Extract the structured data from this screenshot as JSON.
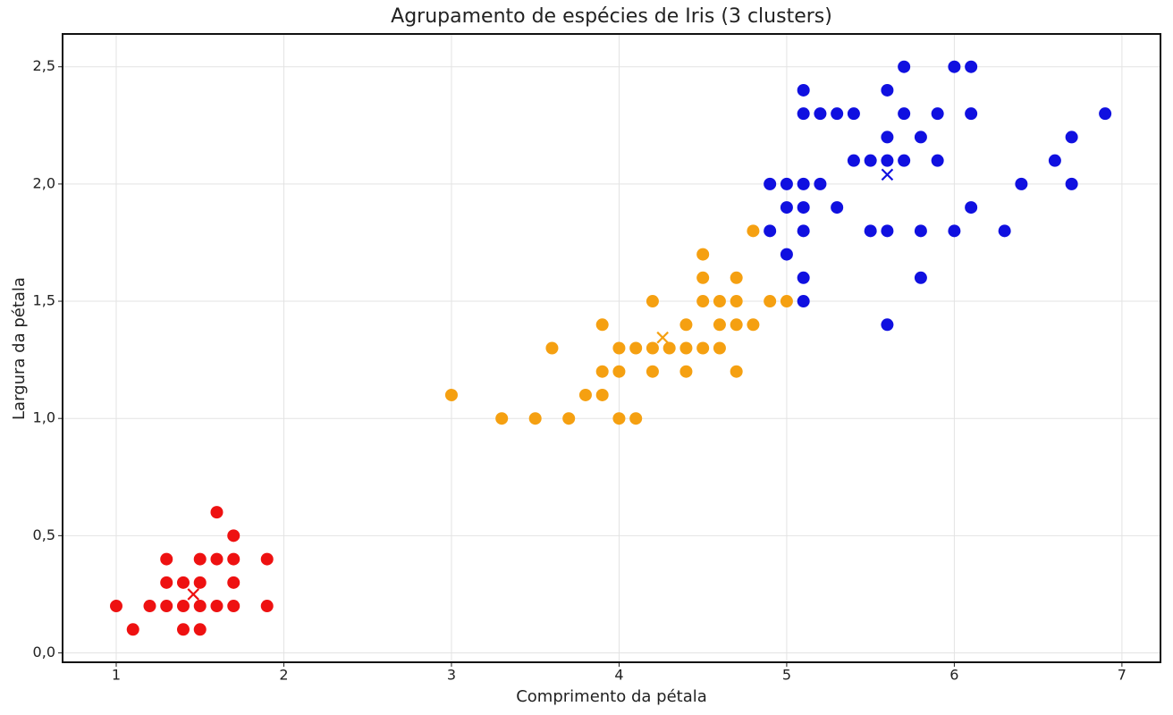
{
  "chart_data": {
    "type": "scatter",
    "title": "Agrupamento de espécies de Iris (3 clusters)",
    "x_label": "Comprimento da pétala",
    "y_label": "Largura da pétala",
    "xlim": [
      0.68,
      7.23
    ],
    "ylim": [
      -0.04,
      2.64
    ],
    "xticks": [
      1,
      2,
      3,
      4,
      5,
      6,
      7
    ],
    "yticks": [
      {
        "value": 0,
        "label": "0,0"
      },
      {
        "value": 0.5,
        "label": "0,5"
      },
      {
        "value": 1,
        "label": "1,0"
      },
      {
        "value": 1.5,
        "label": "1,5"
      },
      {
        "value": 2,
        "label": "2,0"
      },
      {
        "value": 2.5,
        "label": "2,5"
      }
    ],
    "grid": true,
    "series": [
      {
        "color": "#ee1111",
        "x": [
          1.0,
          1.1,
          1.2,
          1.3,
          1.3,
          1.3,
          1.4,
          1.4,
          1.4,
          1.5,
          1.5,
          1.5,
          1.5,
          1.6,
          1.6,
          1.6,
          1.7,
          1.7,
          1.7,
          1.7,
          1.9,
          1.9
        ],
        "y": [
          0.2,
          0.1,
          0.2,
          0.2,
          0.3,
          0.4,
          0.1,
          0.2,
          0.3,
          0.1,
          0.2,
          0.3,
          0.4,
          0.2,
          0.4,
          0.6,
          0.2,
          0.3,
          0.4,
          0.5,
          0.2,
          0.4
        ],
        "centroid": [
          1.46,
          0.25
        ]
      },
      {
        "color": "#f5a011",
        "x": [
          3.0,
          3.3,
          3.5,
          3.6,
          3.7,
          3.8,
          3.9,
          3.9,
          3.9,
          4.0,
          4.0,
          4.0,
          4.1,
          4.1,
          4.2,
          4.2,
          4.2,
          4.3,
          4.4,
          4.4,
          4.4,
          4.5,
          4.5,
          4.5,
          4.5,
          4.6,
          4.6,
          4.6,
          4.7,
          4.7,
          4.7,
          4.7,
          4.8,
          4.8,
          4.9,
          5.0
        ],
        "y": [
          1.1,
          1.0,
          1.0,
          1.3,
          1.0,
          1.1,
          1.1,
          1.2,
          1.4,
          1.0,
          1.2,
          1.3,
          1.0,
          1.3,
          1.2,
          1.3,
          1.5,
          1.3,
          1.2,
          1.3,
          1.4,
          1.3,
          1.5,
          1.6,
          1.7,
          1.3,
          1.4,
          1.5,
          1.2,
          1.4,
          1.5,
          1.6,
          1.4,
          1.8,
          1.5,
          1.5
        ],
        "centroid": [
          4.26,
          1.345
        ]
      },
      {
        "color": "#1010e0",
        "x": [
          4.9,
          4.9,
          5.0,
          5.0,
          5.0,
          5.1,
          5.1,
          5.1,
          5.1,
          5.1,
          5.1,
          5.1,
          5.2,
          5.2,
          5.3,
          5.3,
          5.4,
          5.4,
          5.5,
          5.5,
          5.6,
          5.6,
          5.6,
          5.6,
          5.6,
          5.7,
          5.7,
          5.7,
          5.8,
          5.8,
          5.8,
          5.9,
          5.9,
          6.0,
          6.0,
          6.1,
          6.1,
          6.1,
          6.3,
          6.4,
          6.6,
          6.7,
          6.7,
          6.9
        ],
        "y": [
          1.8,
          2.0,
          1.7,
          1.9,
          2.0,
          1.5,
          1.6,
          1.8,
          1.9,
          2.0,
          2.3,
          2.4,
          2.0,
          2.3,
          1.9,
          2.3,
          2.1,
          2.3,
          1.8,
          2.1,
          1.4,
          1.8,
          2.1,
          2.2,
          2.4,
          2.1,
          2.3,
          2.5,
          1.6,
          1.8,
          2.2,
          2.1,
          2.3,
          1.8,
          2.5,
          1.9,
          2.3,
          2.5,
          1.8,
          2.0,
          2.1,
          2.0,
          2.2,
          2.3
        ],
        "centroid": [
          5.6,
          2.04
        ]
      }
    ]
  }
}
